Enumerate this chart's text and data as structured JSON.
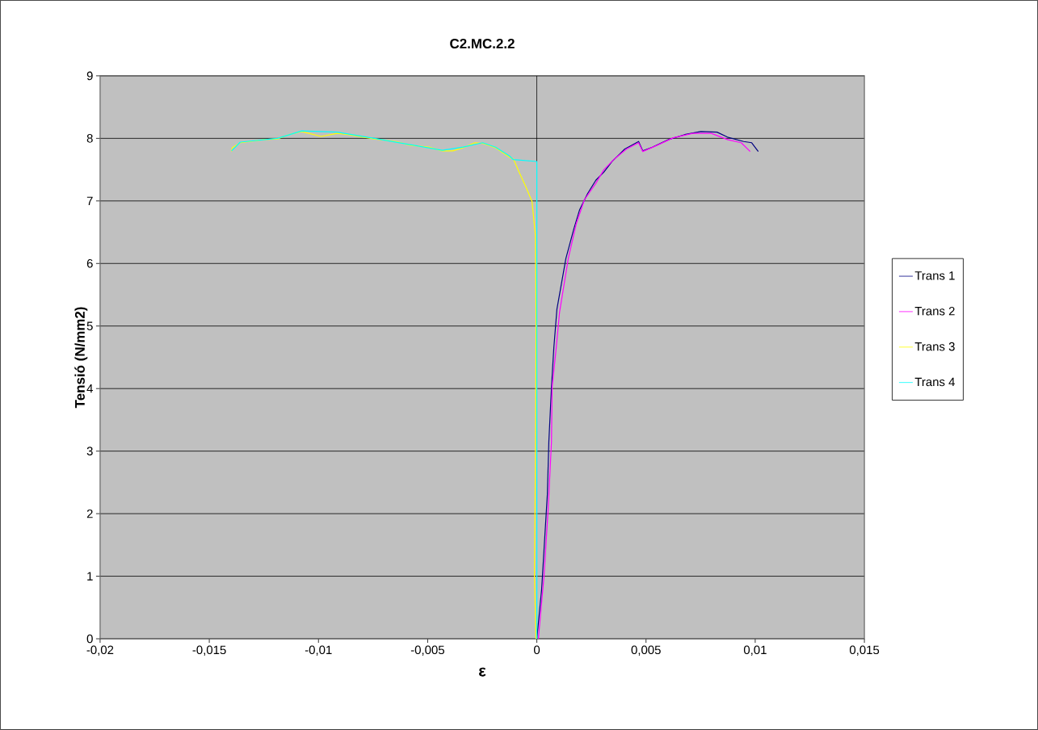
{
  "chart_data": {
    "type": "line",
    "title": "C2.MC.2.2",
    "xlabel": "ε",
    "ylabel": "Tensió (N/mm2)",
    "xlim": [
      -0.02,
      0.015
    ],
    "ylim": [
      0,
      9
    ],
    "xticks": [
      {
        "value": -0.02,
        "label": "-0,02"
      },
      {
        "value": -0.015,
        "label": "-0,015"
      },
      {
        "value": -0.01,
        "label": "-0,01"
      },
      {
        "value": -0.005,
        "label": "-0,005"
      },
      {
        "value": 0,
        "label": "0"
      },
      {
        "value": 0.005,
        "label": "0,005"
      },
      {
        "value": 0.01,
        "label": "0,01"
      },
      {
        "value": 0.015,
        "label": "0,015"
      }
    ],
    "yticks": [
      0,
      1,
      2,
      3,
      4,
      5,
      6,
      7,
      8,
      9
    ],
    "grid": "y",
    "legend": "right",
    "marker": "none",
    "line_style": "solid",
    "ref_lines": [
      {
        "axis": "x",
        "value": 0,
        "color": "#000000"
      }
    ],
    "series": [
      {
        "name": "Trans 1",
        "color": "#000080",
        "x": [
          0,
          0.00022,
          0.00033,
          0.00048,
          0.00055,
          0.00067,
          0.00078,
          0.00092,
          0.00133,
          0.0017,
          0.00196,
          0.00233,
          0.0027,
          0.00307,
          0.00344,
          0.00403,
          0.00466,
          0.00485,
          0.00529,
          0.00603,
          0.00677,
          0.00751,
          0.00825,
          0.00873,
          0.00947,
          0.00984,
          0.01014
        ],
        "values": [
          0,
          0.79,
          1.43,
          2.3,
          3.15,
          4.02,
          4.66,
          5.27,
          6.08,
          6.56,
          6.86,
          7.12,
          7.33,
          7.46,
          7.63,
          7.83,
          7.95,
          7.8,
          7.86,
          7.98,
          8.06,
          8.11,
          8.1,
          8.02,
          7.95,
          7.93,
          7.79
        ]
      },
      {
        "name": "Trans 2",
        "color": "#ff00ff",
        "x": [
          7e-05,
          0.00033,
          0.00052,
          0.00067,
          0.0007,
          0.00089,
          0.00104,
          0.00144,
          0.00181,
          0.00218,
          0.0027,
          0.00307,
          0.00355,
          0.00411,
          0.00466,
          0.00485,
          0.00551,
          0.00625,
          0.00714,
          0.00799,
          0.00873,
          0.00936,
          0.00977
        ],
        "values": [
          0,
          1.01,
          2.08,
          3.15,
          4.02,
          4.66,
          5.22,
          6.08,
          6.64,
          7.02,
          7.28,
          7.5,
          7.67,
          7.83,
          7.93,
          7.79,
          7.89,
          8.01,
          8.08,
          8.08,
          7.98,
          7.93,
          7.79
        ]
      },
      {
        "name": "Trans 3",
        "color": "#ffff00",
        "x": [
          -4e-05,
          -0.00011,
          -7e-05,
          -4e-05,
          -4e-05,
          -7e-05,
          -0.00022,
          -0.00052,
          -0.00081,
          -0.00107,
          -0.00126,
          -0.00189,
          -0.00248,
          -0.00285,
          -0.00337,
          -0.00385,
          -0.00433,
          -0.00496,
          -0.00581,
          -0.00644,
          -0.00744,
          -0.00866,
          -0.00914,
          -0.00988,
          -0.01077,
          -0.01136,
          -0.01188,
          -0.01247,
          -0.01358,
          -0.01395,
          -0.01398
        ],
        "values": [
          0,
          1.01,
          2.72,
          4.88,
          5.18,
          6.47,
          6.99,
          7.24,
          7.46,
          7.67,
          7.7,
          7.85,
          7.92,
          7.93,
          7.85,
          7.8,
          7.8,
          7.86,
          7.89,
          7.95,
          7.99,
          8.06,
          8.08,
          8.03,
          8.11,
          8.06,
          7.99,
          7.98,
          7.93,
          7.85,
          7.79
        ]
      },
      {
        "name": "Trans 4",
        "color": "#00ffff",
        "x": [
          0,
          0,
          -0.00107,
          -0.00126,
          -0.00189,
          -0.00248,
          -0.00337,
          -0.00433,
          -0.00581,
          -0.00744,
          -0.00914,
          -0.01077,
          -0.01188,
          -0.01358,
          -0.01398
        ],
        "values": [
          0,
          7.63,
          7.66,
          7.72,
          7.86,
          7.93,
          7.86,
          7.81,
          7.9,
          8.0,
          8.1,
          8.12,
          8.0,
          7.94,
          7.8
        ]
      }
    ]
  }
}
